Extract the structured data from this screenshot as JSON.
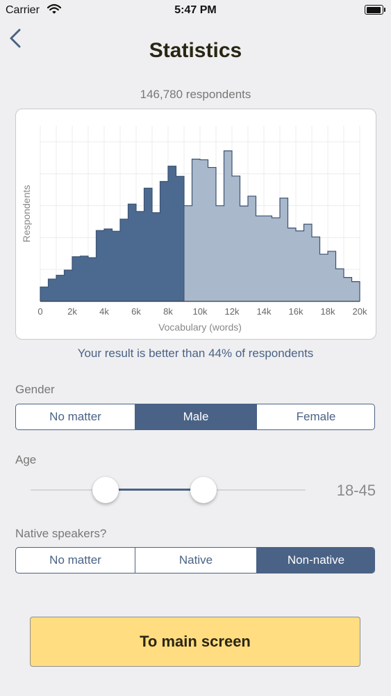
{
  "status_bar": {
    "carrier": "Carrier",
    "time": "5:47 PM"
  },
  "header": {
    "title": "Statistics",
    "back_icon": "chevron-left-icon"
  },
  "summary": {
    "respondents": "146,780 respondents"
  },
  "chart_data": {
    "type": "bar",
    "xlabel": "Vocabulary (words)",
    "ylabel": "Respondents",
    "xlim": [
      0,
      20000
    ],
    "ylim": [
      0,
      5.5
    ],
    "x_ticks": [
      "0",
      "2k",
      "4k",
      "6k",
      "8k",
      "10k",
      "12k",
      "14k",
      "16k",
      "18k",
      "20k"
    ],
    "bin_width": 500,
    "bin_starts": [
      0,
      500,
      1000,
      1500,
      2000,
      2500,
      3000,
      3500,
      4000,
      4500,
      5000,
      5500,
      6000,
      6500,
      7000,
      7500,
      8000,
      8500,
      9000,
      9500,
      10000,
      10500,
      11000,
      11500,
      12000,
      12500,
      13000,
      13500,
      14000,
      14500,
      15000,
      15500,
      16000,
      16500,
      17000,
      17500,
      18000,
      18500,
      19000,
      19500
    ],
    "values": [
      0.45,
      0.7,
      0.82,
      0.98,
      1.4,
      1.42,
      1.37,
      2.22,
      2.27,
      2.2,
      2.58,
      3.05,
      2.82,
      3.55,
      2.78,
      3.76,
      4.24,
      3.92,
      3.0,
      4.46,
      4.44,
      4.2,
      3.0,
      4.72,
      3.93,
      2.99,
      3.3,
      2.68,
      2.68,
      2.62,
      3.24,
      2.3,
      2.21,
      2.42,
      2.02,
      1.48,
      1.57,
      1.02,
      0.75,
      0.62
    ],
    "highlight_until": 9000,
    "colors": {
      "highlight": "#4c6a8f",
      "rest": "#a9b8cb",
      "line": "#3a5272"
    }
  },
  "result_text": "Your result is better than 44% of respondents",
  "gender": {
    "label": "Gender",
    "options": [
      "No matter",
      "Male",
      "Female"
    ],
    "selected": "Male"
  },
  "age": {
    "label": "Age",
    "value": "18-45",
    "range_low_fraction": 0.25,
    "range_high_fraction": 0.64
  },
  "native": {
    "label": "Native speakers?",
    "options": [
      "No matter",
      "Native",
      "Non-native"
    ],
    "selected": "Non-native"
  },
  "main_button": {
    "label": "To main screen"
  },
  "colors": {
    "accent": "#4a6285",
    "button": "#ffdd80",
    "background": "#efeff1"
  }
}
